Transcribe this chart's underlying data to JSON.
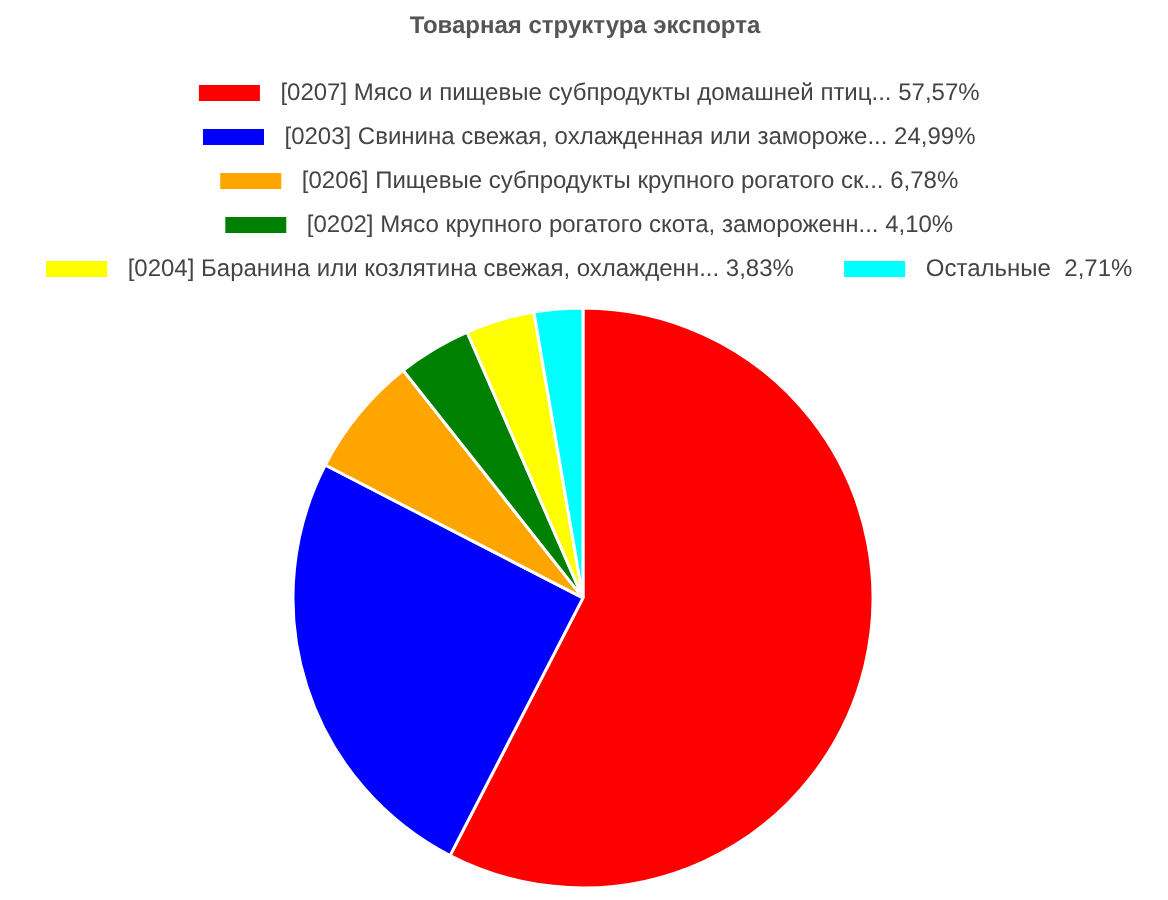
{
  "chart_data": {
    "type": "pie",
    "title": "Товарная структура экспорта",
    "categories": [
      "[0207] Мясо и пищевые субпродукты домашней птиц...",
      "[0203] Свинина свежая, охлажденная или замороже...",
      "[0206] Пищевые субпродукты крупного рогатого ск...",
      "[0202] Мясо крупного рогатого скота, замороженн...",
      "[0204] Баранина или козлятина свежая, охлажденн...",
      "Остальные "
    ],
    "values": [
      57.57,
      24.99,
      6.78,
      4.1,
      3.83,
      2.71
    ],
    "value_labels": [
      "57,57%",
      "24,99%",
      "6,78%",
      "4,10%",
      "3,83%",
      "2,71%"
    ],
    "colors": [
      "#ff0000",
      "#0000ff",
      "#ffa500",
      "#008000",
      "#ffff00",
      "#00ffff"
    ],
    "legend": "top"
  }
}
